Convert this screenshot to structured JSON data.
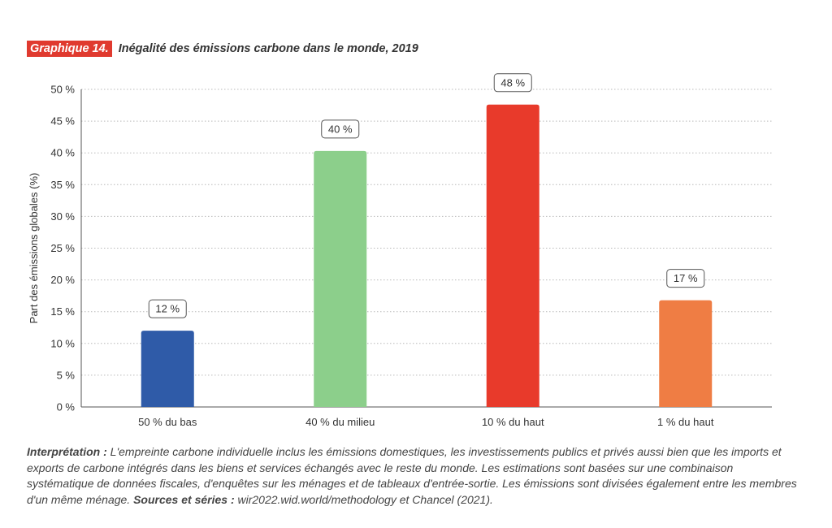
{
  "header": {
    "tag": "Graphique 14.",
    "title": "Inégalité des émissions carbone dans le monde, 2019"
  },
  "chart_data": {
    "type": "bar",
    "title": "Inégalité des émissions carbone dans le monde, 2019",
    "xlabel": "",
    "ylabel": "Part des émissions globales (%)",
    "ylim": [
      0,
      50
    ],
    "yticks": [
      "0 %",
      "5 %",
      "10 %",
      "15 %",
      "20 %",
      "25 %",
      "30 %",
      "35 %",
      "40 %",
      "45 %",
      "50 %"
    ],
    "categories": [
      "50 % du bas",
      "40 % du milieu",
      "10 % du haut",
      "1 % du haut"
    ],
    "values": [
      12,
      40.3,
      47.6,
      16.8
    ],
    "data_labels": [
      "12 %",
      "40 %",
      "48 %",
      "17 %"
    ],
    "colors": [
      "#2f5ba8",
      "#8ccf8b",
      "#e83a2b",
      "#ef7d44"
    ],
    "grid": "horizontal dotted",
    "legend": "none"
  },
  "note": {
    "interp_label": "Interprétation :",
    "interp_text": "L'empreinte carbone individuelle inclus les émissions domestiques, les investissements publics et privés aussi bien que les imports et exports de carbone intégrés dans les biens et services échangés avec le reste du monde. Les estimations sont basées sur une combinaison systématique de données fiscales, d'enquêtes sur les ménages et de tableaux d'entrée-sortie. Les émissions sont divisées également entre les membres d'un même ménage.",
    "sources_label": "Sources et séries :",
    "sources_text": "wir2022.wid.world/methodology et Chancel (2021)."
  }
}
